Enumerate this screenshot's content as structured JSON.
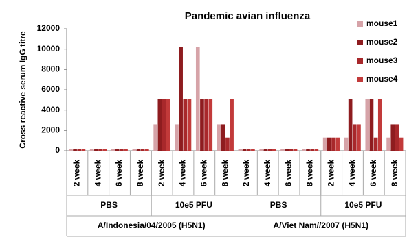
{
  "chart_data": {
    "type": "bar",
    "title": "Pandemic avian influenza",
    "y_label": "Cross reactive serum IgG titre",
    "categories": [
      "2 week",
      "4 week",
      "6 week",
      "8 week",
      "2 week",
      "4 week",
      "6 week",
      "8 week",
      "2 week",
      "4 week",
      "6 week",
      "8 week",
      "2 week",
      "4 week",
      "6 week",
      "8 week"
    ],
    "category_groups": [
      "PBS",
      "10e5 PFU",
      "PBS",
      "10e5 PFU"
    ],
    "super_groups": [
      "A/Indonesia/04/2005  (H5N1)",
      "A/Viet Nam//2007  (H5N1)"
    ],
    "series": [
      {
        "name": "mouse1",
        "color": "#d6a3a8",
        "values": [
          200,
          200,
          200,
          200,
          2600,
          2600,
          10200,
          2600,
          200,
          200,
          200,
          200,
          1300,
          1300,
          5100,
          1300
        ]
      },
      {
        "name": "mouse2",
        "color": "#8e1c1f",
        "values": [
          200,
          200,
          200,
          200,
          5100,
          10200,
          5100,
          2600,
          200,
          200,
          200,
          200,
          1300,
          5100,
          5100,
          2600
        ]
      },
      {
        "name": "mouse3",
        "color": "#a8282b",
        "values": [
          200,
          200,
          200,
          200,
          5100,
          5100,
          5100,
          1300,
          200,
          200,
          200,
          200,
          1300,
          2600,
          1300,
          2600
        ]
      },
      {
        "name": "mouse4",
        "color": "#c23a3a",
        "values": [
          200,
          200,
          200,
          200,
          5100,
          5100,
          5100,
          5100,
          200,
          200,
          200,
          200,
          1300,
          2600,
          5100,
          1300
        ]
      }
    ],
    "ylim": [
      0,
      12000
    ],
    "yticks": [
      0,
      2000,
      4000,
      6000,
      8000,
      10000,
      12000
    ],
    "legend": "right"
  }
}
